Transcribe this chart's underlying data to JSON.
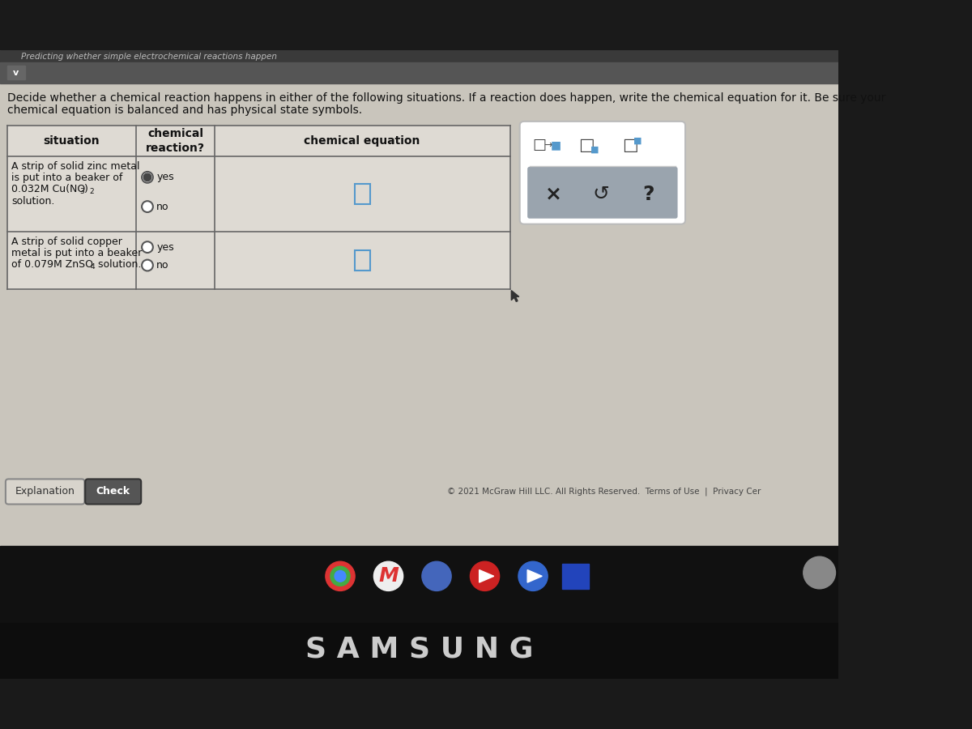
{
  "bg_color": "#c8c8c8",
  "page_bg": "#d8d8d8",
  "table_bg": "#e8e6e0",
  "header_bg": "#e8e6e0",
  "title_text1": "Decide whether a chemical reaction happens in either of the following situations. If a reaction does happen, write the chemical equation for it. Be sure your",
  "title_text2": "chemical equation is balanced and has physical state symbols.",
  "top_bar_text": "Predicting whether simple electrochemical reactions happen",
  "col_header1": "situation",
  "col_header2": "chemical\nreaction?",
  "col_header3": "chemical equation",
  "row1_line1": "A strip of solid zinc metal",
  "row1_line2": "is put into a beaker of",
  "row1_line3a": "0.032M Cu(NO",
  "row1_line3b": "3",
  "row1_line3c": ")",
  "row1_line3d": "2",
  "row1_line4": "solution.",
  "row2_line1": "A strip of solid copper",
  "row2_line2": "metal is put into a beaker",
  "row2_line3a": "of 0.079M ZnSO",
  "row2_line3b": "4",
  "row2_line3c": " solution.",
  "footer_text": "© 2021 McGraw Hill LLC. All Rights Reserved.  Terms of Use  |  Privacy Cer",
  "explanation_btn": "Explanation",
  "check_btn": "Check",
  "samsung_text": "S A M S U N G",
  "yes_text": "yes",
  "no_text": "no"
}
